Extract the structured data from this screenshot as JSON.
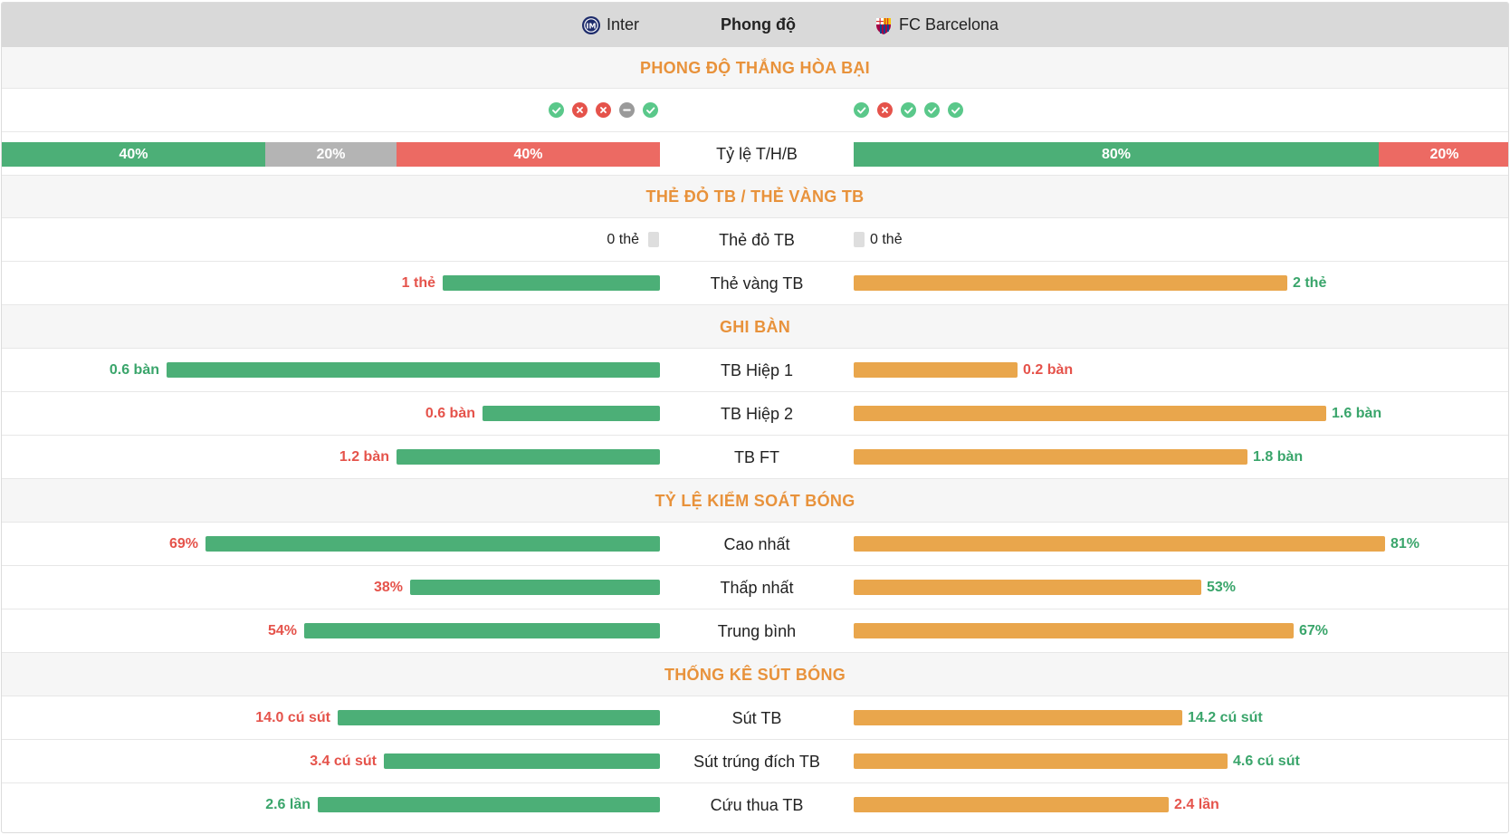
{
  "header": {
    "home_team": "Inter",
    "title": "Phong độ",
    "away_team": "FC Barcelona"
  },
  "colors": {
    "home_bar": "#4caf77",
    "away_bar": "#e9a64c",
    "win": "#4caf77",
    "draw": "#b4b4b4",
    "loss": "#ec6a63",
    "section_title": "#e8923b"
  },
  "sections": {
    "form": "PHONG ĐỘ THẮNG HÒA BẠI",
    "cards": "THẺ ĐỎ TB / THẺ VÀNG TB",
    "goals": "GHI BÀN",
    "possession": "TỶ LỆ KIỂM SOÁT BÓNG",
    "shots": "THỐNG KÊ SÚT BÓNG"
  },
  "form": {
    "home_results": [
      "W",
      "L",
      "L",
      "D",
      "W"
    ],
    "away_results": [
      "W",
      "L",
      "W",
      "W",
      "W"
    ],
    "label": "Tỷ lệ T/H/B",
    "home_ratio": {
      "win": "40%",
      "draw": "20%",
      "loss": "40%",
      "win_pct": 40,
      "draw_pct": 20,
      "loss_pct": 40
    },
    "away_ratio": {
      "win": "80%",
      "loss": "20%",
      "win_pct": 80,
      "loss_pct": 20
    }
  },
  "cards": {
    "red": {
      "label": "Thẻ đỏ TB",
      "home": "0 thẻ",
      "away": "0 thẻ"
    },
    "yellow": {
      "label": "Thẻ vàng TB",
      "home": "1 thẻ",
      "away": "2 thẻ",
      "home_fill": 0.33,
      "away_fill": 0.66
    }
  },
  "goals": {
    "half1": {
      "label": "TB Hiệp 1",
      "home": "0.6 bàn",
      "away": "0.2 bàn",
      "home_fill": 0.75,
      "away_fill": 0.25
    },
    "half2": {
      "label": "TB Hiệp 2",
      "home": "0.6 bàn",
      "away": "1.6 bàn",
      "home_fill": 0.27,
      "away_fill": 0.72
    },
    "ft": {
      "label": "TB FT",
      "home": "1.2 bàn",
      "away": "1.8 bàn",
      "home_fill": 0.4,
      "away_fill": 0.6
    }
  },
  "possession": {
    "max": {
      "label": "Cao nhất",
      "home": "69%",
      "away": "81%",
      "home_fill": 0.69,
      "away_fill": 0.81
    },
    "min": {
      "label": "Thấp nhất",
      "home": "38%",
      "away": "53%",
      "home_fill": 0.38,
      "away_fill": 0.53
    },
    "avg": {
      "label": "Trung bình",
      "home": "54%",
      "away": "67%",
      "home_fill": 0.54,
      "away_fill": 0.67
    }
  },
  "shots": {
    "total": {
      "label": "Sút TB",
      "home": "14.0 cú sút",
      "away": "14.2 cú sút",
      "home_fill": 0.49,
      "away_fill": 0.5
    },
    "on_target": {
      "label": "Sút trúng đích TB",
      "home": "3.4 cú sút",
      "away": "4.6 cú sút",
      "home_fill": 0.42,
      "away_fill": 0.57
    },
    "saves": {
      "label": "Cứu thua TB",
      "home": "2.6 lần",
      "away": "2.4 lần",
      "home_fill": 0.52,
      "away_fill": 0.48
    }
  }
}
